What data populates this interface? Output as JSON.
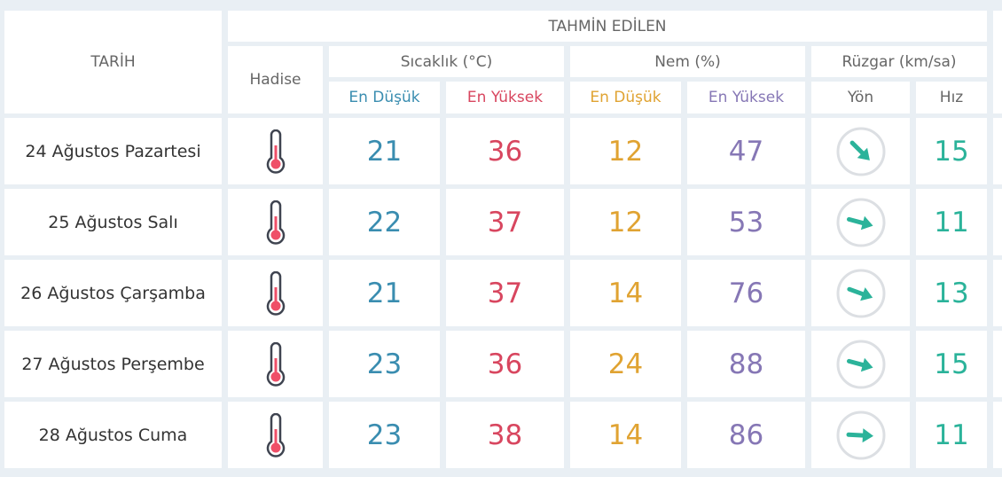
{
  "header": {
    "date": "TARİH",
    "forecast": "TAHMİN EDİLEN",
    "event": "Hadise",
    "temperature": "Sıcaklık (°C)",
    "humidity": "Nem (%)",
    "wind": "Rüzgar (km/sa)",
    "min": "En Düşük",
    "max": "En Yüksek",
    "direction": "Yön",
    "speed": "Hız"
  },
  "colors": {
    "temp_min": "#3a8db0",
    "temp_max": "#d8465f",
    "hum_min": "#e0a332",
    "hum_max": "#8677b5",
    "wind": "#2bb39a"
  },
  "rows": [
    {
      "date": "24 Ağustos Pazartesi",
      "icon": "thermometer-icon",
      "temp_min": "21",
      "temp_max": "36",
      "hum_min": "12",
      "hum_max": "47",
      "wind_dir_deg": 45,
      "wind_speed": "15"
    },
    {
      "date": "25 Ağustos Salı",
      "icon": "thermometer-icon",
      "temp_min": "22",
      "temp_max": "37",
      "hum_min": "12",
      "hum_max": "53",
      "wind_dir_deg": 15,
      "wind_speed": "11"
    },
    {
      "date": "26 Ağustos Çarşamba",
      "icon": "thermometer-icon",
      "temp_min": "21",
      "temp_max": "37",
      "hum_min": "14",
      "hum_max": "76",
      "wind_dir_deg": 20,
      "wind_speed": "13"
    },
    {
      "date": "27 Ağustos Perşembe",
      "icon": "thermometer-icon",
      "temp_min": "23",
      "temp_max": "36",
      "hum_min": "24",
      "hum_max": "88",
      "wind_dir_deg": 15,
      "wind_speed": "15"
    },
    {
      "date": "28 Ağustos Cuma",
      "icon": "thermometer-icon",
      "temp_min": "23",
      "temp_max": "38",
      "hum_min": "14",
      "hum_max": "86",
      "wind_dir_deg": 3,
      "wind_speed": "11"
    }
  ]
}
